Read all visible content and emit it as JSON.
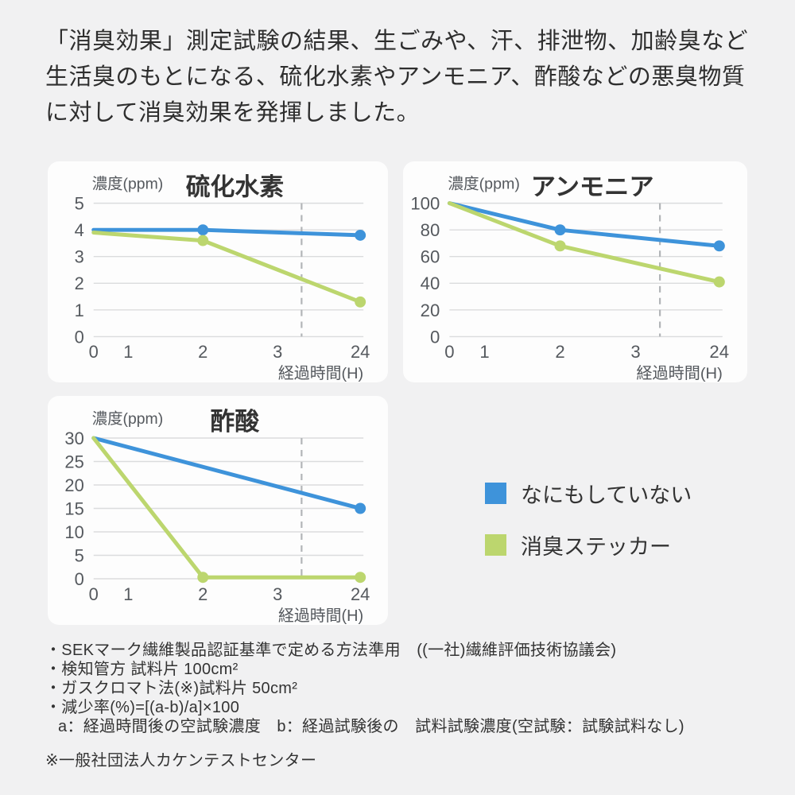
{
  "header": {
    "text": "「消臭効果」測定試験の結果、生ごみや、汗、排泄物、加齢臭など生活臭のもとになる、硫化水素やアンモニア、酢酸などの悪臭物質に対して消臭効果を発揮しました。"
  },
  "colors": {
    "page_bg": "#F1F1F2",
    "card_bg": "#FDFDFD",
    "heading_text": "#2E2E2E",
    "title_text": "#333333",
    "axis_text": "#55595E",
    "grid": "#DBDCDD",
    "divider": "#B2B5B8",
    "blue": "#3E93DA",
    "green": "#BCD66E"
  },
  "legend": {
    "items": [
      {
        "label": "なにもしていない",
        "color": "#3E93DA"
      },
      {
        "label": "消臭ステッカー",
        "color": "#BCD66E"
      }
    ]
  },
  "chart_data": [
    {
      "type": "line",
      "title": "硫化水素",
      "ylabel": "濃度(ppm)",
      "xlabel": "経過時間(H)",
      "x_tick_values": [
        0,
        1,
        2,
        3,
        24
      ],
      "x_tick_positions": [
        0,
        0.13,
        0.41,
        0.69,
        1
      ],
      "y_ticks": [
        0,
        1,
        2,
        3,
        4,
        5
      ],
      "ylim": [
        0,
        5
      ],
      "grid": true,
      "legend_position": "none",
      "divider_position": 0.78,
      "series": [
        {
          "name": "なにもしていない",
          "color": "#3E93DA",
          "x": [
            0,
            2,
            24
          ],
          "y": [
            4,
            4,
            3.8
          ],
          "markers": [
            2,
            24
          ]
        },
        {
          "name": "消臭ステッカー",
          "color": "#BCD66E",
          "x": [
            0,
            2,
            24
          ],
          "y": [
            3.9,
            3.6,
            1.3
          ],
          "markers": [
            2,
            24
          ]
        }
      ]
    },
    {
      "type": "line",
      "title": "アンモニア",
      "ylabel": "濃度(ppm)",
      "xlabel": "経過時間(H)",
      "x_tick_values": [
        0,
        1,
        2,
        3,
        24
      ],
      "x_tick_positions": [
        0,
        0.13,
        0.41,
        0.69,
        1
      ],
      "y_ticks": [
        0,
        20,
        40,
        60,
        80,
        100
      ],
      "ylim": [
        0,
        100
      ],
      "grid": true,
      "legend_position": "none",
      "divider_position": 0.78,
      "series": [
        {
          "name": "なにもしていない",
          "color": "#3E93DA",
          "x": [
            0,
            2,
            24
          ],
          "y": [
            100,
            80,
            68
          ],
          "markers": [
            2,
            24
          ]
        },
        {
          "name": "消臭ステッカー",
          "color": "#BCD66E",
          "x": [
            0,
            2,
            24
          ],
          "y": [
            100,
            68,
            41
          ],
          "markers": [
            2,
            24
          ]
        }
      ]
    },
    {
      "type": "line",
      "title": "酢酸",
      "ylabel": "濃度(ppm)",
      "xlabel": "経過時間(H)",
      "x_tick_values": [
        0,
        1,
        2,
        3,
        24
      ],
      "x_tick_positions": [
        0,
        0.13,
        0.41,
        0.69,
        1
      ],
      "y_ticks": [
        0,
        5,
        10,
        15,
        20,
        25,
        30
      ],
      "ylim": [
        0,
        30
      ],
      "grid": true,
      "legend_position": "none",
      "divider_position": 0.78,
      "series": [
        {
          "name": "なにもしていない",
          "color": "#3E93DA",
          "x": [
            0,
            24
          ],
          "y": [
            30,
            15
          ],
          "markers": [
            24
          ]
        },
        {
          "name": "消臭ステッカー",
          "color": "#BCD66E",
          "x": [
            0,
            2,
            24
          ],
          "y": [
            30,
            0.3,
            0.3
          ],
          "markers": [
            2,
            24
          ]
        }
      ]
    }
  ],
  "notes": {
    "lines": [
      "・SEKマーク繊維製品認証基準で定める方法準用　((一社)繊維評価技術協議会)",
      "・検知管方 試料片 100cm²",
      "・ガスクロマト法(※)試料片 50cm²",
      "・減少率(%)=[(a-b)/a]×100",
      "a：経過時間後の空試験濃度　b：経過試験後の　試料試験濃度(空試験：試験試料なし)",
      "※一般社団法人カケンテストセンター"
    ]
  }
}
